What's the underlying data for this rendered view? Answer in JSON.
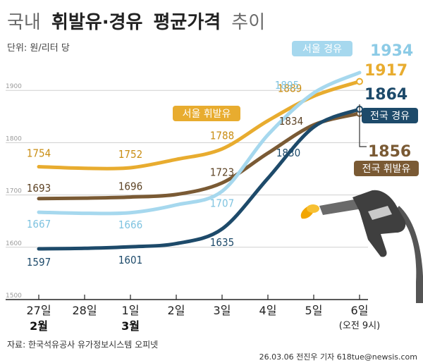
{
  "header": {
    "title_pre": "국내",
    "title_bold1": "휘발유·경유",
    "title_bold2": "평균가격",
    "title_post": "추이",
    "unit": "단위: 원/리터 당"
  },
  "footer": {
    "source": "자료: 한국석유공사 유가정보시스템 오피넷",
    "credit": "26.03.06 전진우 기자 618tue@newsis.com"
  },
  "x_sub": {
    "feb": "2월",
    "mar": "3월",
    "note": "(오전 9시)"
  },
  "colors": {
    "seoul_gasoline": "#e8ac2f",
    "seoul_diesel": "#a6d8ee",
    "national_gasoline": "#7a5a34",
    "national_diesel": "#1d4a6a",
    "yaxis_band": "#ffffff",
    "grid": "#cfcfcf"
  },
  "chart_data": {
    "type": "line",
    "categories": [
      "27일",
      "28일",
      "1일",
      "2일",
      "3일",
      "4일",
      "5일",
      "6일"
    ],
    "y_ticks": [
      1500,
      1600,
      1700,
      1800,
      1900
    ],
    "ylim": [
      1500,
      1965
    ],
    "grid": true,
    "series": [
      {
        "name": "서울 휘발유",
        "key": "seoul_gasoline",
        "values": [
          1754,
          1751,
          1752,
          1768,
          1788,
          1842,
          1889,
          1917
        ],
        "labels": [
          "1754",
          null,
          "1752",
          null,
          "1788",
          null,
          "1889",
          "1917"
        ]
      },
      {
        "name": "서울 경유",
        "key": "seoul_diesel",
        "values": [
          1667,
          1665,
          1666,
          1681,
          1707,
          1815,
          1895,
          1934
        ],
        "labels": [
          "1667",
          null,
          "1666",
          null,
          "1707",
          null,
          "1895",
          "1934"
        ]
      },
      {
        "name": "전국 휘발유",
        "key": "national_gasoline",
        "values": [
          1693,
          1694,
          1696,
          1701,
          1723,
          1780,
          1834,
          1856
        ],
        "labels": [
          "1693",
          null,
          "1696",
          null,
          "1723",
          null,
          "1834",
          "1856"
        ]
      },
      {
        "name": "전국 경유",
        "key": "national_diesel",
        "values": [
          1597,
          1598,
          1601,
          1607,
          1635,
          1732,
          1830,
          1864
        ],
        "labels": [
          "1597",
          null,
          "1601",
          null,
          "1635",
          null,
          "1830",
          "1864"
        ]
      }
    ]
  }
}
